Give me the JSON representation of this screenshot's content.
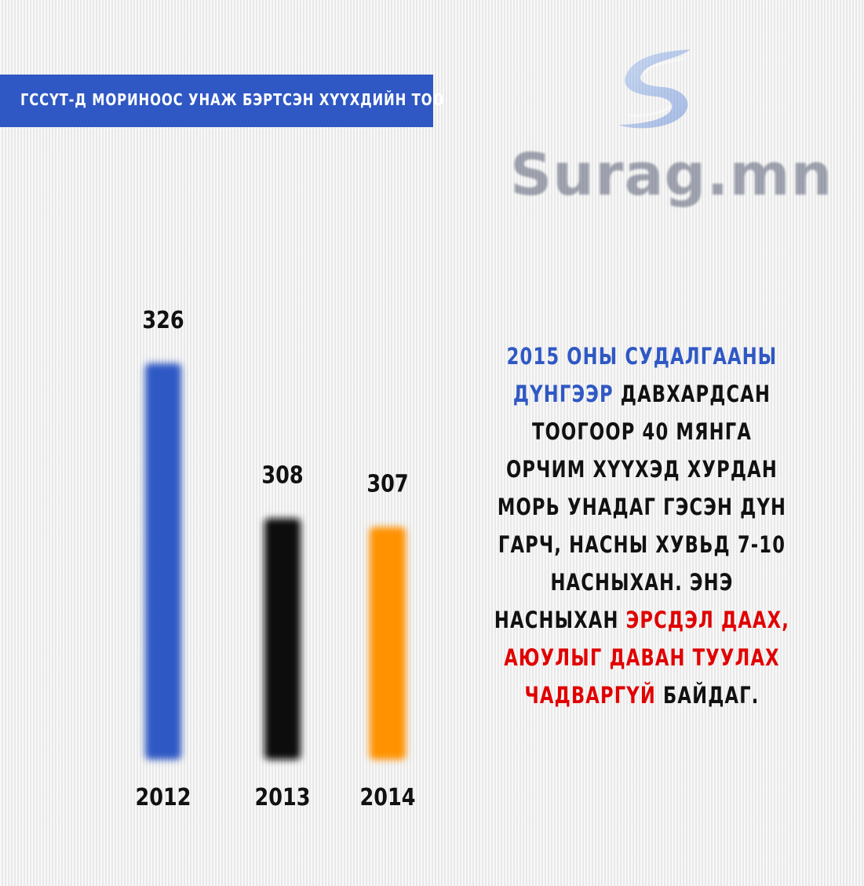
{
  "banner": {
    "title": "ГССҮТ-Д МОРИНООС УНАЖ БЭРТСЭН ХҮҮХДИЙН ТОО"
  },
  "logo": {
    "text": "Surag.mn",
    "icon": "surag-logo-icon"
  },
  "chart_data": {
    "type": "bar",
    "title": "ГССҮТ-Д МОРИНООС УНАЖ БЭРТСЭН ХҮҮХДИЙН ТОО",
    "categories": [
      "2012",
      "2013",
      "2014"
    ],
    "values": [
      326,
      308,
      307
    ],
    "colors": [
      "#2f58c4",
      "#0a0a0a",
      "#ff9200"
    ],
    "data_labels": [
      "326",
      "308",
      "307"
    ],
    "grid": false
  },
  "note": {
    "part1": "2015 ОНЫ СУДАЛГААНЫ ДҮНГЭЭР",
    "part2": " ДАВХАРДСАН ТООГООР 40 МЯНГА ОРЧИМ ХҮҮХЭД ХУРДАН МОРЬ УНАДАГ ГЭСЭН ДҮН ГАРЧ, НАСНЫ ХУВЬД 7-10 НАСНЫХАН. ЭНЭ НАСНЫХАН ",
    "part3": "ЭРСДЭЛ ДААХ, АЮУЛЫГ ДАВАН ТУУЛАХ ЧАДВАРГҮЙ",
    "part4": " БАЙДАГ.",
    "colors": {
      "highlight_blue": "#2f58c4",
      "highlight_red": "#e10000"
    }
  }
}
